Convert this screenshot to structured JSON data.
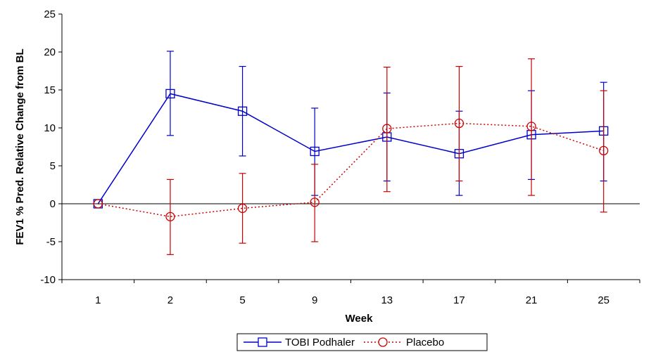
{
  "chart_data": {
    "type": "line",
    "categories": [
      "1",
      "2",
      "5",
      "9",
      "13",
      "17",
      "21",
      "25"
    ],
    "xlabel": "Week",
    "ylabel": "FEV1 % Pred. Relative Change from BL",
    "ylim": [
      -10,
      25
    ],
    "yticks": [
      -10,
      -5,
      0,
      5,
      10,
      15,
      20,
      25
    ],
    "zero_line": true,
    "legend_position": "bottom-center",
    "series": [
      {
        "name": "TOBI Podhaler",
        "color": "#0000cc",
        "line_style": "solid",
        "marker": "square",
        "values": [
          0,
          14.5,
          12.2,
          6.9,
          8.8,
          6.6,
          9.1,
          9.6
        ],
        "error_low": [
          0,
          9.0,
          6.3,
          1.1,
          3.0,
          1.1,
          3.2,
          3.0
        ],
        "error_high": [
          0,
          20.1,
          18.1,
          12.6,
          14.6,
          12.2,
          14.9,
          16.0
        ]
      },
      {
        "name": "Placebo",
        "color": "#cc0000",
        "line_style": "dotted",
        "marker": "circle",
        "values": [
          0,
          -1.7,
          -0.6,
          0.2,
          9.9,
          10.6,
          10.2,
          7.0
        ],
        "error_low": [
          0,
          -6.7,
          -5.2,
          -5.0,
          1.6,
          3.0,
          1.1,
          -1.1
        ],
        "error_high": [
          0,
          3.2,
          4.0,
          5.2,
          18.0,
          18.1,
          19.1,
          14.9
        ]
      }
    ]
  }
}
